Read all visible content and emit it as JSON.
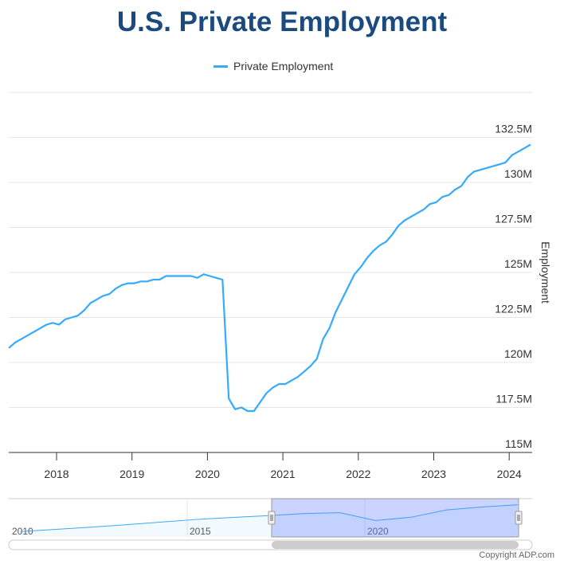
{
  "chart_data": {
    "type": "line",
    "title": "U.S. Private Employment",
    "legend": {
      "position": "top-center",
      "entries": [
        "Private Employment"
      ]
    },
    "ylabel": "Employment",
    "xlabel": "",
    "ylim": [
      115,
      135
    ],
    "yticks": [
      115,
      117.5,
      120,
      122.5,
      125,
      127.5,
      130,
      132.5
    ],
    "ytick_labels": [
      "115M",
      "117.5M",
      "120M",
      "122.5M",
      "125M",
      "127.5M",
      "130M",
      "132.5M"
    ],
    "xticks": [
      "2018",
      "2019",
      "2020",
      "2021",
      "2022",
      "2023",
      "2024"
    ],
    "x_start": "2017-05",
    "x_frequency": "monthly",
    "grid": true,
    "color": "#36aaff",
    "series": [
      {
        "name": "Private Employment",
        "unit": "millions",
        "values": [
          120.8,
          121.1,
          121.3,
          121.5,
          121.7,
          121.9,
          122.1,
          122.2,
          122.1,
          122.4,
          122.5,
          122.6,
          122.9,
          123.3,
          123.5,
          123.7,
          123.8,
          124.1,
          124.3,
          124.4,
          124.4,
          124.5,
          124.5,
          124.6,
          124.6,
          124.8,
          124.8,
          124.8,
          124.8,
          124.8,
          124.7,
          124.9,
          124.8,
          124.7,
          124.6,
          118.0,
          117.4,
          117.5,
          117.3,
          117.3,
          117.8,
          118.3,
          118.6,
          118.8,
          118.8,
          119.0,
          119.2,
          119.5,
          119.8,
          120.2,
          121.3,
          121.9,
          122.8,
          123.5,
          124.2,
          124.9,
          125.3,
          125.8,
          126.2,
          126.5,
          126.7,
          127.1,
          127.6,
          127.9,
          128.1,
          128.3,
          128.5,
          128.8,
          128.9,
          129.2,
          129.3,
          129.6,
          129.8,
          130.3,
          130.6,
          130.7,
          130.8,
          130.9,
          131.0,
          131.1,
          131.5,
          131.7,
          131.9,
          132.1
        ]
      }
    ],
    "navigator": {
      "xticks": [
        "2010",
        "2015",
        "2020"
      ],
      "range": [
        "2010",
        "2024"
      ],
      "selected": [
        "2017-05",
        "2024-04"
      ],
      "yearly_values": [
        107.5,
        109.5,
        111.5,
        113.8,
        116.2,
        118.6,
        120.4,
        122.0,
        123.9,
        124.6,
        117.6,
        120.5,
        127.1,
        129.8,
        131.8
      ]
    }
  },
  "copyright": "Copyright ADP.com"
}
